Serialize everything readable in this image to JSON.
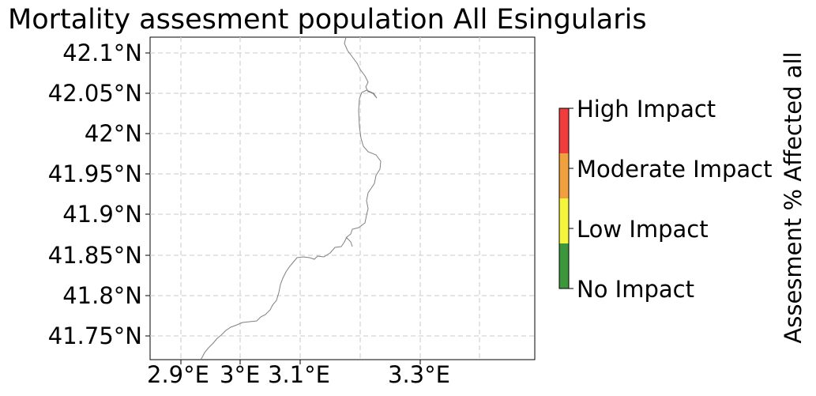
{
  "title": "Mortality assesment population All Esingularis",
  "y_ticks": [
    "42.1°N",
    "42.05°N",
    "42°N",
    "41.95°N",
    "41.9°N",
    "41.85°N",
    "41.8°N",
    "41.75°N"
  ],
  "x_ticks": [
    "2.9°E",
    "3°E",
    "3.1°E",
    "3.3°E"
  ],
  "colorbar": {
    "title": "Assesment % Affected all",
    "levels": [
      {
        "label": "High Impact",
        "color": "#f03c3c"
      },
      {
        "label": "Moderate Impact",
        "color": "#f0a03c"
      },
      {
        "label": "Low Impact",
        "color": "#f5f53c"
      },
      {
        "label": "No Impact",
        "color": "#3c963c"
      }
    ]
  },
  "colors": {
    "coastline": "#808080",
    "grid": "#d3d3d3"
  }
}
